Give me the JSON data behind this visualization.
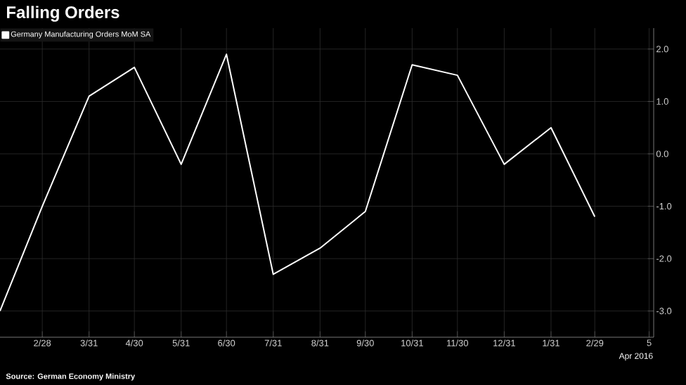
{
  "chart_data": {
    "type": "line",
    "title": "Falling Orders",
    "x": [
      "2015-01-31",
      "2015-02-28",
      "2015-03-31",
      "2015-04-30",
      "2015-05-31",
      "2015-06-30",
      "2015-07-31",
      "2015-08-31",
      "2015-09-30",
      "2015-10-31",
      "2015-11-30",
      "2015-12-31",
      "2016-01-31",
      "2016-02-29"
    ],
    "series": [
      {
        "name": "Germany Manufacturing Orders MoM SA",
        "color": "#ffffff",
        "values": [
          -3.0,
          -1.0,
          1.1,
          1.65,
          -0.2,
          1.9,
          -2.3,
          -1.8,
          -1.1,
          1.7,
          1.5,
          -0.2,
          0.5,
          -1.2
        ]
      }
    ],
    "xlim": [
      "2015-01-31",
      "2016-04-08"
    ],
    "xticks": [
      {
        "value": "2015-02-28",
        "label": "2/28"
      },
      {
        "value": "2015-03-31",
        "label": "3/31"
      },
      {
        "value": "2015-04-30",
        "label": "4/30"
      },
      {
        "value": "2015-05-31",
        "label": "5/31"
      },
      {
        "value": "2015-06-30",
        "label": "6/30"
      },
      {
        "value": "2015-07-31",
        "label": "7/31"
      },
      {
        "value": "2015-08-31",
        "label": "8/31"
      },
      {
        "value": "2015-09-30",
        "label": "9/30"
      },
      {
        "value": "2015-10-31",
        "label": "10/31"
      },
      {
        "value": "2015-11-30",
        "label": "11/30"
      },
      {
        "value": "2015-12-31",
        "label": "12/31"
      },
      {
        "value": "2016-01-31",
        "label": "1/31"
      },
      {
        "value": "2016-02-29",
        "label": "2/29"
      },
      {
        "value": "2016-04-05",
        "label": "5"
      }
    ],
    "ylim": [
      -3.5,
      2.4
    ],
    "yticks": [
      {
        "value": -3,
        "label": "-3.0"
      },
      {
        "value": -2,
        "label": "-2.0"
      },
      {
        "value": -1,
        "label": "-1.0"
      },
      {
        "value": 0,
        "label": "0.0"
      },
      {
        "value": 1,
        "label": "1.0"
      },
      {
        "value": 2,
        "label": "2.0"
      }
    ],
    "annotations": [
      "Apr 2016",
      "Source: German Economy Ministry"
    ],
    "grid": true,
    "legend": "top left",
    "line_style": "solid",
    "marker": "none"
  }
}
